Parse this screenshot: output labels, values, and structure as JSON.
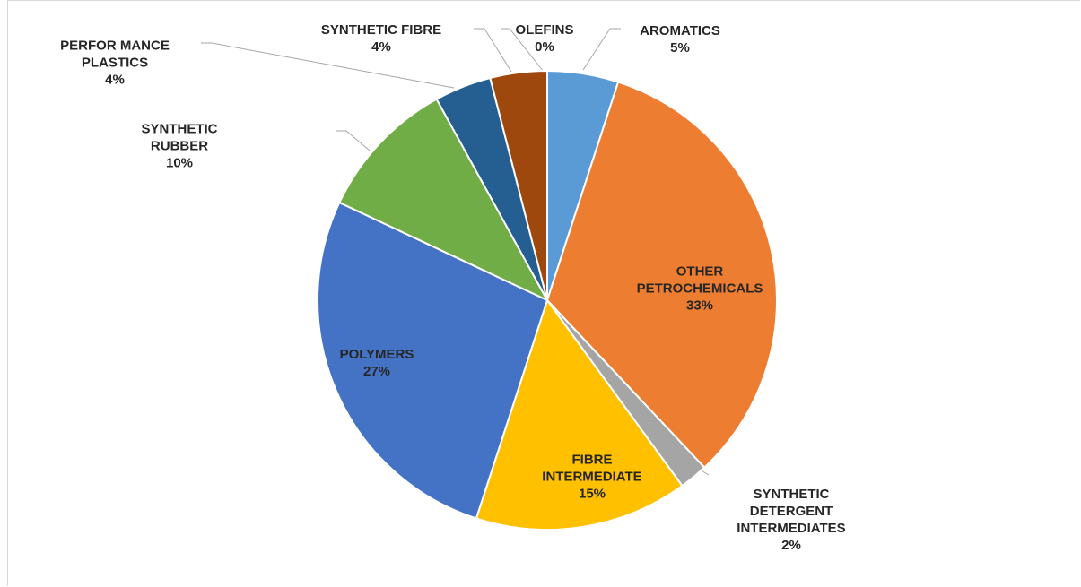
{
  "chart_data": {
    "type": "pie",
    "categories": [
      "AROMATICS",
      "OTHER PETROCHEMICALS",
      "SYNTHETIC DETERGENT INTERMEDIATES",
      "FIBRE INTERMEDIATE",
      "POLYMERS",
      "SYNTHETIC RUBBER",
      "PERFOR MANCE PLASTICS",
      "SYNTHETIC FIBRE",
      "OLEFINS"
    ],
    "values": [
      5,
      33,
      2,
      15,
      27,
      10,
      4,
      4,
      0
    ],
    "value_labels": [
      "5%",
      "33%",
      "2%",
      "15%",
      "27%",
      "10%",
      "4%",
      "4%",
      "0%"
    ],
    "colors": [
      "#5b9bd5",
      "#ed7d31",
      "#a5a5a5",
      "#ffc000",
      "#4472c4",
      "#70ad47",
      "#255e91",
      "#9e480e",
      "#636363"
    ]
  }
}
